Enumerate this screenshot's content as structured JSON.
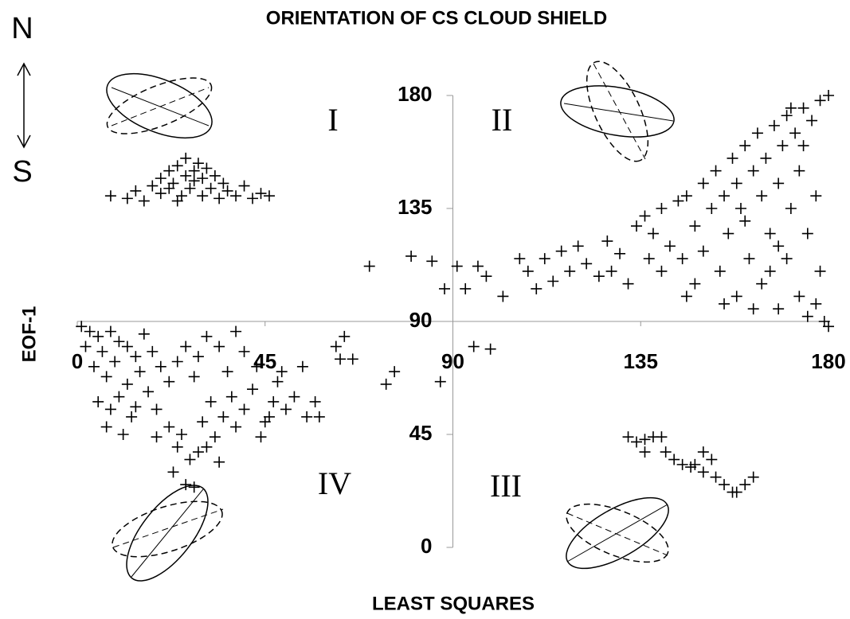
{
  "chart_data": {
    "type": "scatter",
    "title": "ORIENTATION OF CS CLOUD SHIELD",
    "x_label": "LEAST SQUARES",
    "y_label": "EOF-1",
    "north_label": "N",
    "south_label": "S",
    "quadrant_labels": [
      "I",
      "II",
      "III",
      "IV"
    ],
    "color": "#000000",
    "xlim": [
      0,
      180
    ],
    "ylim": [
      0,
      180
    ],
    "xticks": [
      0,
      45,
      90,
      135,
      180
    ],
    "yticks": [
      0,
      45,
      90,
      135,
      180
    ],
    "x": [
      8,
      12,
      14,
      16,
      18,
      20,
      20,
      22,
      23,
      24,
      25,
      26,
      26,
      27,
      28,
      28,
      29,
      30,
      30,
      31,
      32,
      33,
      34,
      35,
      36,
      38,
      40,
      42,
      44,
      46,
      24,
      22,
      112,
      116,
      118,
      120,
      122,
      125,
      127,
      130,
      132,
      134,
      136,
      138,
      140,
      140,
      142,
      144,
      145,
      146,
      148,
      148,
      150,
      150,
      152,
      153,
      154,
      155,
      156,
      157,
      158,
      158,
      160,
      160,
      161,
      162,
      163,
      164,
      164,
      165,
      166,
      167,
      168,
      168,
      169,
      170,
      170,
      171,
      172,
      173,
      173,
      174,
      175,
      175,
      176,
      177,
      177,
      178,
      178,
      179,
      180,
      180,
      166,
      162,
      155,
      146,
      137,
      128,
      171,
      174,
      168,
      159,
      1,
      3,
      5,
      2,
      6,
      8,
      10,
      4,
      7,
      9,
      12,
      14,
      12,
      15,
      16,
      18,
      20,
      5,
      8,
      10,
      13,
      17,
      19,
      22,
      24,
      26,
      28,
      22,
      25,
      24,
      27,
      23,
      29,
      30,
      32,
      33,
      35,
      37,
      36,
      38,
      40,
      42,
      43,
      45,
      47,
      48,
      50,
      52,
      54,
      55,
      57,
      29,
      31,
      34,
      38,
      40,
      7,
      11,
      14,
      19,
      34,
      31,
      26,
      28,
      44,
      46,
      49,
      58,
      132,
      134,
      136,
      138,
      140,
      136,
      141,
      143,
      145,
      147,
      150,
      152,
      153,
      155,
      157,
      158,
      160,
      162,
      150,
      148,
      62,
      64,
      70,
      76,
      80,
      85,
      87,
      88,
      91,
      93,
      96,
      98,
      95,
      99,
      102,
      106,
      108,
      110,
      114,
      66,
      63,
      74
    ],
    "values": [
      140,
      139,
      142,
      138,
      144,
      147,
      141,
      150,
      145,
      152,
      140,
      148,
      155,
      143,
      150,
      146,
      153,
      140,
      147,
      151,
      143,
      148,
      139,
      145,
      142,
      140,
      144,
      139,
      141,
      140,
      138,
      143,
      115,
      118,
      110,
      120,
      113,
      108,
      122,
      117,
      105,
      128,
      132,
      125,
      135,
      110,
      120,
      138,
      115,
      140,
      128,
      105,
      145,
      118,
      135,
      150,
      110,
      140,
      125,
      155,
      100,
      145,
      160,
      130,
      115,
      150,
      165,
      105,
      140,
      155,
      125,
      168,
      95,
      145,
      160,
      172,
      115,
      135,
      165,
      100,
      150,
      175,
      92,
      125,
      170,
      140,
      97,
      178,
      110,
      90,
      180,
      88,
      110,
      95,
      97,
      100,
      115,
      110,
      175,
      160,
      120,
      135,
      88,
      86,
      84,
      80,
      78,
      86,
      82,
      72,
      68,
      74,
      80,
      76,
      65,
      70,
      85,
      78,
      72,
      58,
      55,
      60,
      52,
      62,
      55,
      66,
      74,
      80,
      68,
      48,
      45,
      40,
      35,
      30,
      38,
      50,
      58,
      44,
      52,
      60,
      70,
      48,
      55,
      63,
      72,
      50,
      58,
      66,
      55,
      60,
      72,
      52,
      58,
      76,
      84,
      80,
      86,
      78,
      48,
      45,
      56,
      44,
      34,
      40,
      25,
      24,
      44,
      52,
      70,
      52,
      44,
      42,
      43,
      44,
      44,
      38,
      38,
      35,
      33,
      32,
      30,
      35,
      28,
      25,
      22,
      22,
      25,
      28,
      38,
      33,
      80,
      84,
      112,
      70,
      116,
      114,
      66,
      103,
      112,
      103,
      112,
      108,
      80,
      79,
      100,
      115,
      110,
      103,
      106,
      75,
      75,
      65
    ]
  }
}
